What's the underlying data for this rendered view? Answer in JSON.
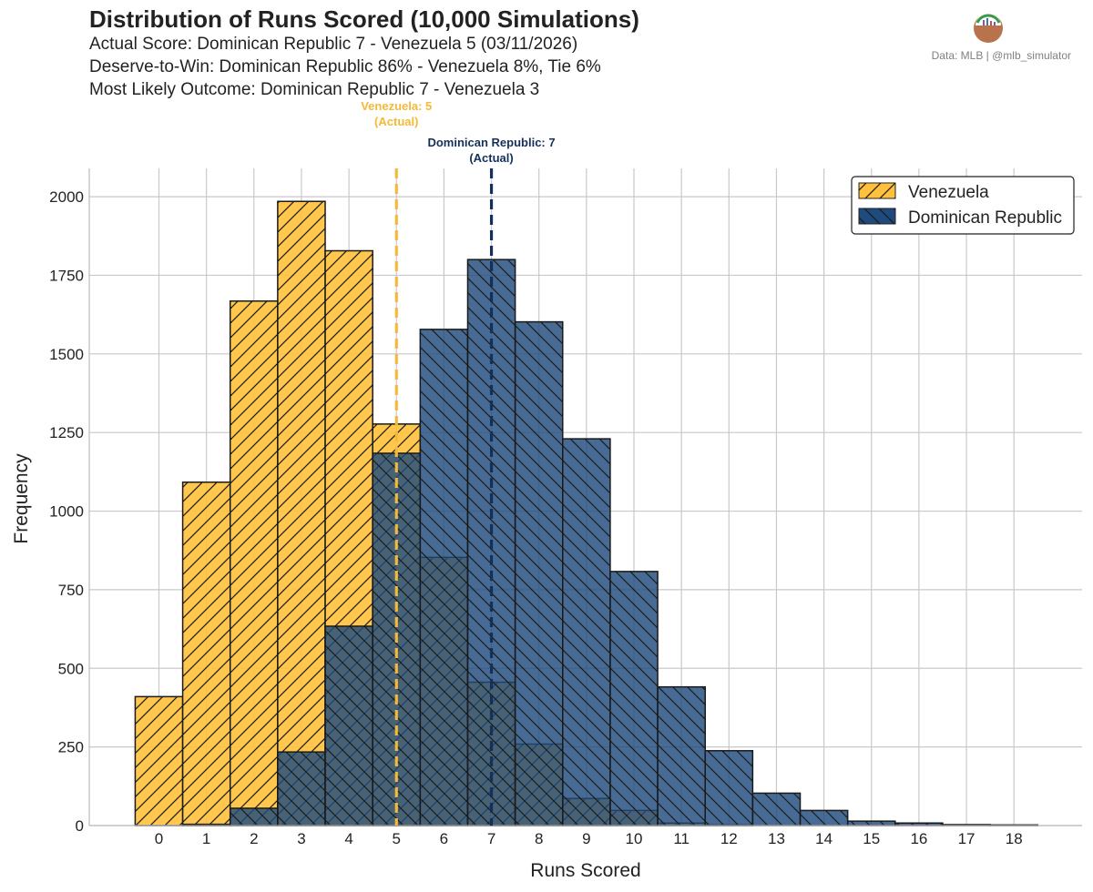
{
  "header": {
    "title": "Distribution of Runs Scored (10,000 Simulations)",
    "subtitle_lines": [
      "Actual Score: Dominican Republic 7 - Venezuela 5  (03/11/2026)",
      "Deserve-to-Win: Dominican Republic 86% - Venezuela 8%, Tie 6%",
      "Most Likely Outcome: Dominican Republic 7 - Venezuela 3"
    ],
    "credit": "Data: MLB  |  @mlb_simulator",
    "logo_icon": "mlb-simulator-logo-icon"
  },
  "chart_data": {
    "type": "bar",
    "title": "Distribution of Runs Scored (10,000 Simulations)",
    "xlabel": "Runs Scored",
    "ylabel": "Frequency",
    "categories": [
      "0",
      "1",
      "2",
      "3",
      "4",
      "5",
      "6",
      "7",
      "8",
      "9",
      "10",
      "11",
      "12",
      "13",
      "14",
      "15",
      "16",
      "17",
      "18"
    ],
    "ylim": [
      0,
      2090
    ],
    "yticks": [
      0,
      250,
      500,
      750,
      1000,
      1250,
      1500,
      1750,
      2000
    ],
    "grid": true,
    "legend_position": "top-right",
    "series": [
      {
        "name": "Venezuela",
        "color": "#FFC13B",
        "hatch": "/",
        "values": [
          410,
          1092,
          1668,
          1985,
          1828,
          1277,
          853,
          456,
          259,
          86,
          48,
          8,
          2,
          0,
          0,
          0,
          0,
          0,
          0
        ]
      },
      {
        "name": "Dominican Republic",
        "color": "#1F4A7E",
        "hatch": "\\",
        "values": [
          0,
          4,
          55,
          234,
          634,
          1184,
          1578,
          1800,
          1602,
          1230,
          808,
          441,
          238,
          103,
          48,
          14,
          8,
          3,
          2
        ]
      }
    ],
    "annotations": [
      {
        "x": 5,
        "label_line1": "Venezuela: 5",
        "label_line2": "(Actual)",
        "color": "#F4B936"
      },
      {
        "x": 7,
        "label_line1": "Dominican Republic: 7",
        "label_line2": "(Actual)",
        "color": "#14305A"
      }
    ]
  }
}
